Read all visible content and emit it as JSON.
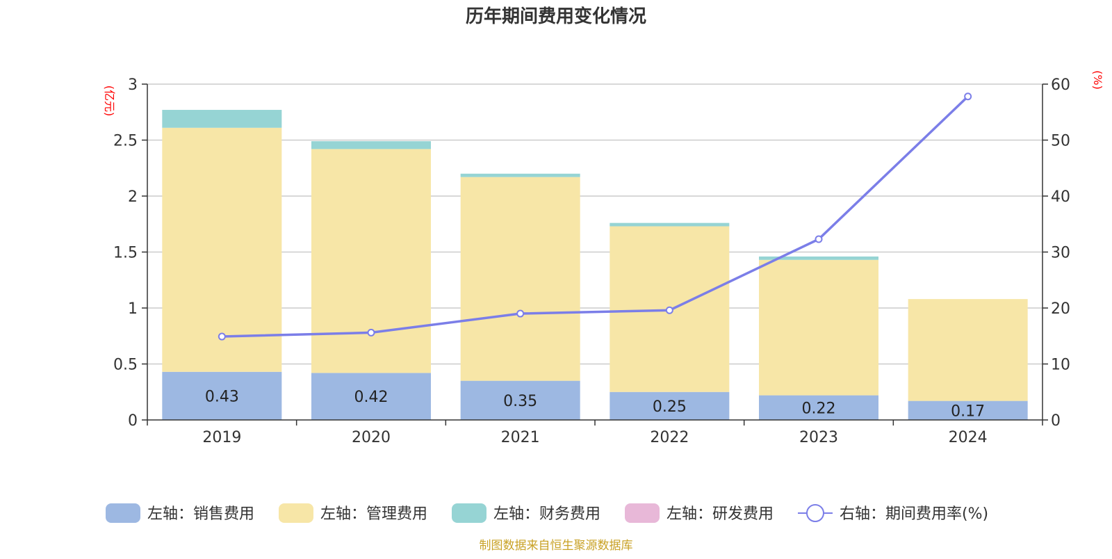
{
  "colors": {
    "sales": "#9db8e2",
    "admin": "#f7e6a7",
    "finance": "#96d4d4",
    "rd": "#e8b8d8",
    "rate": "#7b7ee8",
    "grid": "#cccccc",
    "axis": "#333333",
    "unit": "#ff0000",
    "source": "#c9a227"
  },
  "chart_data": {
    "type": "bar",
    "title": "历年期间费用变化情况",
    "categories": [
      "2019",
      "2020",
      "2021",
      "2022",
      "2023",
      "2024"
    ],
    "left_axis": {
      "unit_label": "(亿元)",
      "ylim": [
        0,
        3
      ],
      "ticks": [
        "0",
        "0.5",
        "1",
        "1.5",
        "2",
        "2.5",
        "3"
      ]
    },
    "right_axis": {
      "unit_label": "(%)",
      "ylim": [
        0,
        60
      ],
      "ticks": [
        "0",
        "10",
        "20",
        "30",
        "40",
        "50",
        "60"
      ]
    },
    "series": [
      {
        "name": "左轴：销售费用",
        "key": "sales",
        "axis": "left",
        "type": "bar",
        "values": [
          0.43,
          0.42,
          0.35,
          0.25,
          0.22,
          0.17
        ],
        "labels": [
          "0.43",
          "0.42",
          "0.35",
          "0.25",
          "0.22",
          "0.17"
        ]
      },
      {
        "name": "左轴：管理费用",
        "key": "admin",
        "axis": "left",
        "type": "bar",
        "values": [
          2.18,
          2.0,
          1.82,
          1.48,
          1.21,
          0.91
        ]
      },
      {
        "name": "左轴：财务费用",
        "key": "finance",
        "axis": "left",
        "type": "bar",
        "values": [
          0.16,
          0.07,
          0.03,
          0.03,
          0.03,
          0.0
        ]
      },
      {
        "name": "左轴：研发费用",
        "key": "rd",
        "axis": "left",
        "type": "bar",
        "values": [
          0,
          0,
          0,
          0,
          0,
          0
        ]
      },
      {
        "name": "右轴：期间费用率(%)",
        "key": "rate",
        "axis": "right",
        "type": "line",
        "values": [
          14.9,
          15.6,
          19.0,
          19.6,
          32.3,
          57.8
        ]
      }
    ],
    "grid": true,
    "legend_position": "bottom"
  },
  "source_note": "制图数据来自恒生聚源数据库"
}
